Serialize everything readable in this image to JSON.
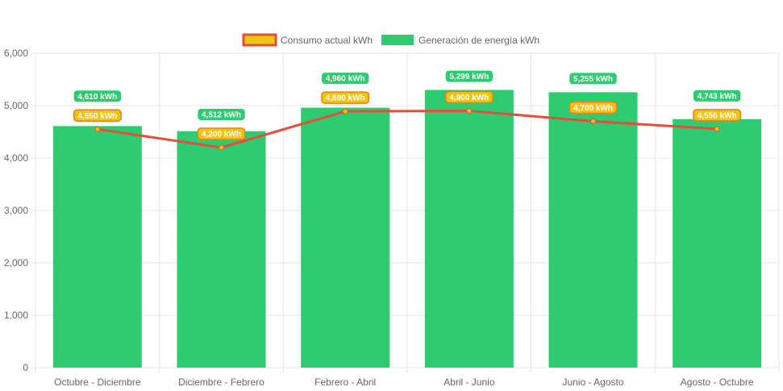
{
  "colors": {
    "generation": "#2ecc71",
    "consumption_line": "#e74c3c",
    "consumption_fill": "#f1c40f",
    "consumption_label_bg": "#f1c40f",
    "consumption_label_border": "#e67e22",
    "grid": "#e5e5e5",
    "tick_text": "#666666"
  },
  "chart_data": {
    "type": "bar",
    "categories": [
      "Octubre - Diciembre",
      "Diciembre - Febrero",
      "Febrero - Abril",
      "Abril - Junio",
      "Junio - Agosto",
      "Agosto - Octubre"
    ],
    "series": [
      {
        "name": "Consumo actual kWh",
        "type": "line",
        "values": [
          4550,
          4200,
          4890,
          4900,
          4700,
          4556
        ],
        "labels": [
          "4,550 kWh",
          "4,200 kWh",
          "4,890 kWh",
          "4,900 kWh",
          "4,700 kWh",
          "4,556 kWh"
        ]
      },
      {
        "name": "Generación de energía kWh",
        "type": "bar",
        "values": [
          4610,
          4512,
          4960,
          5299,
          5255,
          4743
        ],
        "labels": [
          "4,610 kWh",
          "4,512 kWh",
          "4,960 kWh",
          "5,299 kWh",
          "5,255 kWh",
          "4,743 kWh"
        ]
      }
    ],
    "ylim": [
      0,
      6000
    ],
    "yticks": [
      "0",
      "1,000",
      "2,000",
      "3,000",
      "4,000",
      "5,000",
      "6,000"
    ],
    "grid": true,
    "legend": "top-center"
  }
}
